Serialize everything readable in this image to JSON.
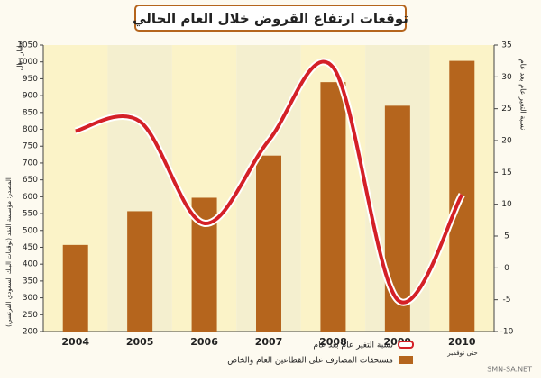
{
  "chart_data": {
    "type": "bar_line",
    "title": "توقعات ارتفاع القروض خلال العام الحالي",
    "y_label": "مليار ريال",
    "y2_label": "نسبة التغير عام بعد عام",
    "source": "المصدر: مؤسسة النقد (توقعات البنك السعودي الفرنسي)",
    "note": "حتى نوفمبر",
    "watermark": "SMN-SA.NET",
    "categories": [
      "2004",
      "2005",
      "2006",
      "2007",
      "2008",
      "2009",
      "2010"
    ],
    "series": [
      {
        "name": "مستحقات المصارف على القطاعين العام والخاص",
        "color": "#b5651d",
        "values": [
          457,
          557,
          597,
          722,
          940,
          870,
          1003
        ]
      },
      {
        "name": "نسبة التغير عام بعد عام",
        "color": "#d42027",
        "axis": "y2",
        "values": [
          21.5,
          23,
          7,
          20,
          31.5,
          -5,
          11.5
        ]
      }
    ],
    "ylim": [
      200,
      1050
    ],
    "yticks": [
      200,
      250,
      300,
      350,
      400,
      450,
      500,
      550,
      600,
      650,
      700,
      750,
      800,
      850,
      900,
      950,
      1000,
      1050
    ],
    "y2lim": [
      -10,
      35
    ],
    "y2ticks": [
      -10,
      -5,
      0,
      5,
      10,
      15,
      20,
      25,
      30,
      35
    ]
  }
}
